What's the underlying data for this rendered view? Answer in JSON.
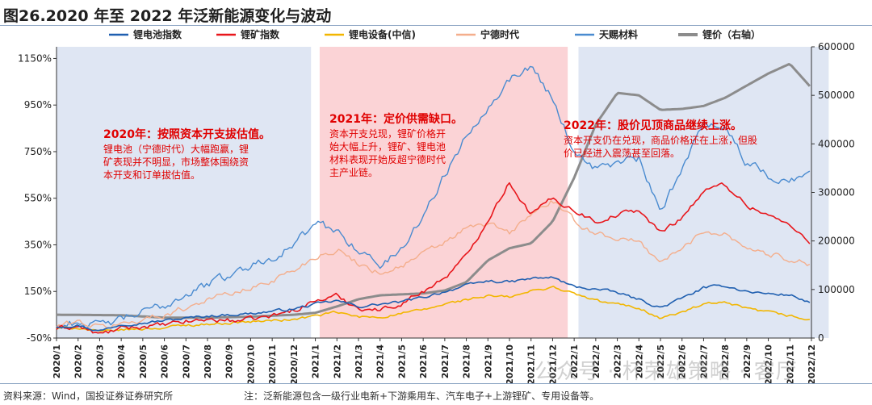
{
  "figure": {
    "title": "图26.2020 年至 2022 年泛新能源变化与波动",
    "source": "资料来源：Wind，国投证券证券研究所",
    "note": "注：泛新能源包含一级行业电新+下游乘用车、汽车电子+上游锂矿、专用设备等。",
    "watermark": "公众号 · 杯荣雄策略 · 客厅"
  },
  "colors": {
    "shade_2020": "#dfe6f3",
    "shade_2021": "#fbd3d6",
    "shade_2022": "#dfe6f3",
    "annotation": "#e00000"
  },
  "chart_data": {
    "type": "line",
    "x_ticks": [
      "2020/1",
      "2020/2",
      "2020/3",
      "2020/4",
      "2020/5",
      "2020/6",
      "2020/7",
      "2020/8",
      "2020/9",
      "2020/10",
      "2020/11",
      "2020/12",
      "2021/1",
      "2021/2",
      "2021/3",
      "2021/4",
      "2021/5",
      "2021/6",
      "2021/7",
      "2021/8",
      "2021/9",
      "2021/10",
      "2021/11",
      "2021/12",
      "2022/1",
      "2022/2",
      "2022/3",
      "2022/4",
      "2022/5",
      "2022/6",
      "2022/7",
      "2022/8",
      "2022/9",
      "2022/10",
      "2022/11",
      "2022/12"
    ],
    "y_left": {
      "ylim": [
        -50,
        1200
      ],
      "ticks": [
        "-50%",
        "150%",
        "350%",
        "550%",
        "750%",
        "950%",
        "1150%"
      ],
      "tick_values": [
        -50,
        150,
        350,
        550,
        750,
        950,
        1150
      ]
    },
    "y_right": {
      "ylim": [
        0,
        600000
      ],
      "ticks": [
        "0",
        "100000",
        "200000",
        "300000",
        "400000",
        "500000",
        "600000"
      ],
      "tick_values": [
        0,
        100000,
        200000,
        300000,
        400000,
        500000,
        600000
      ]
    },
    "legend_position": "top",
    "series": [
      {
        "name": "锂电池指数",
        "color": "#1f5fb0",
        "width": 1.6,
        "axis": "left",
        "noise": 5,
        "anchors": [
          [
            0,
            0
          ],
          [
            1,
            5
          ],
          [
            2,
            -20
          ],
          [
            3,
            10
          ],
          [
            4,
            15
          ],
          [
            5,
            25
          ],
          [
            6,
            35
          ],
          [
            7,
            45
          ],
          [
            8,
            50
          ],
          [
            9,
            55
          ],
          [
            10,
            65
          ],
          [
            11,
            75
          ],
          [
            12,
            95
          ],
          [
            13,
            110
          ],
          [
            14,
            85
          ],
          [
            15,
            95
          ],
          [
            16,
            105
          ],
          [
            17,
            125
          ],
          [
            18,
            150
          ],
          [
            19,
            175
          ],
          [
            20,
            195
          ],
          [
            21,
            190
          ],
          [
            22,
            205
          ],
          [
            23,
            210
          ],
          [
            24,
            170
          ],
          [
            25,
            160
          ],
          [
            26,
            145
          ],
          [
            27,
            115
          ],
          [
            28,
            80
          ],
          [
            29,
            120
          ],
          [
            30,
            165
          ],
          [
            31,
            175
          ],
          [
            32,
            150
          ],
          [
            33,
            140
          ],
          [
            34,
            135
          ],
          [
            35,
            100
          ]
        ]
      },
      {
        "name": "锂矿指数",
        "color": "#e8161b",
        "width": 1.6,
        "axis": "left",
        "noise": 9,
        "anchors": [
          [
            0,
            -10
          ],
          [
            1,
            0
          ],
          [
            2,
            -35
          ],
          [
            3,
            -10
          ],
          [
            4,
            0
          ],
          [
            5,
            5
          ],
          [
            6,
            20
          ],
          [
            7,
            30
          ],
          [
            8,
            25
          ],
          [
            9,
            30
          ],
          [
            10,
            45
          ],
          [
            11,
            70
          ],
          [
            12,
            110
          ],
          [
            13,
            130
          ],
          [
            14,
            80
          ],
          [
            15,
            70
          ],
          [
            16,
            100
          ],
          [
            17,
            150
          ],
          [
            18,
            210
          ],
          [
            19,
            300
          ],
          [
            20,
            460
          ],
          [
            21,
            620
          ],
          [
            22,
            480
          ],
          [
            23,
            550
          ],
          [
            24,
            500
          ],
          [
            25,
            450
          ],
          [
            26,
            480
          ],
          [
            27,
            500
          ],
          [
            28,
            400
          ],
          [
            29,
            470
          ],
          [
            30,
            580
          ],
          [
            31,
            610
          ],
          [
            32,
            520
          ],
          [
            33,
            480
          ],
          [
            34,
            430
          ],
          [
            35,
            360
          ]
        ]
      },
      {
        "name": "锂电设备(中信)",
        "color": "#f2b600",
        "width": 1.6,
        "axis": "left",
        "noise": 5,
        "anchors": [
          [
            0,
            -10
          ],
          [
            1,
            -5
          ],
          [
            2,
            -25
          ],
          [
            3,
            -15
          ],
          [
            4,
            -10
          ],
          [
            5,
            -5
          ],
          [
            6,
            5
          ],
          [
            7,
            10
          ],
          [
            8,
            15
          ],
          [
            9,
            20
          ],
          [
            10,
            25
          ],
          [
            11,
            30
          ],
          [
            12,
            45
          ],
          [
            13,
            60
          ],
          [
            14,
            40
          ],
          [
            15,
            40
          ],
          [
            16,
            55
          ],
          [
            17,
            70
          ],
          [
            18,
            95
          ],
          [
            19,
            115
          ],
          [
            20,
            130
          ],
          [
            21,
            125
          ],
          [
            22,
            150
          ],
          [
            23,
            170
          ],
          [
            24,
            140
          ],
          [
            25,
            110
          ],
          [
            26,
            95
          ],
          [
            27,
            80
          ],
          [
            28,
            35
          ],
          [
            29,
            60
          ],
          [
            30,
            95
          ],
          [
            31,
            100
          ],
          [
            32,
            75
          ],
          [
            33,
            60
          ],
          [
            34,
            45
          ],
          [
            35,
            25
          ]
        ]
      },
      {
        "name": "宁德时代",
        "color": "#f4ae8c",
        "width": 1.4,
        "axis": "left",
        "noise": 11,
        "anchors": [
          [
            0,
            0
          ],
          [
            1,
            20
          ],
          [
            2,
            -5
          ],
          [
            3,
            10
          ],
          [
            4,
            30
          ],
          [
            5,
            50
          ],
          [
            6,
            80
          ],
          [
            7,
            120
          ],
          [
            8,
            140
          ],
          [
            9,
            160
          ],
          [
            10,
            200
          ],
          [
            11,
            240
          ],
          [
            12,
            300
          ],
          [
            13,
            330
          ],
          [
            14,
            270
          ],
          [
            15,
            230
          ],
          [
            16,
            260
          ],
          [
            17,
            310
          ],
          [
            18,
            360
          ],
          [
            19,
            420
          ],
          [
            20,
            440
          ],
          [
            21,
            400
          ],
          [
            22,
            480
          ],
          [
            23,
            540
          ],
          [
            24,
            450
          ],
          [
            25,
            400
          ],
          [
            26,
            380
          ],
          [
            27,
            360
          ],
          [
            28,
            280
          ],
          [
            29,
            330
          ],
          [
            30,
            410
          ],
          [
            31,
            400
          ],
          [
            32,
            340
          ],
          [
            33,
            310
          ],
          [
            34,
            290
          ],
          [
            35,
            270
          ]
        ]
      },
      {
        "name": "天赐材料",
        "color": "#4a8bd0",
        "width": 1.4,
        "axis": "left",
        "noise": 16,
        "anchors": [
          [
            0,
            0
          ],
          [
            1,
            20
          ],
          [
            2,
            0
          ],
          [
            3,
            30
          ],
          [
            4,
            60
          ],
          [
            5,
            90
          ],
          [
            6,
            140
          ],
          [
            7,
            180
          ],
          [
            8,
            220
          ],
          [
            9,
            260
          ],
          [
            10,
            300
          ],
          [
            11,
            350
          ],
          [
            12,
            440
          ],
          [
            13,
            410
          ],
          [
            14,
            330
          ],
          [
            15,
            260
          ],
          [
            16,
            330
          ],
          [
            17,
            480
          ],
          [
            18,
            650
          ],
          [
            19,
            820
          ],
          [
            20,
            950
          ],
          [
            21,
            1060
          ],
          [
            22,
            1120
          ],
          [
            23,
            980
          ],
          [
            24,
            750
          ],
          [
            25,
            680
          ],
          [
            26,
            700
          ],
          [
            27,
            720
          ],
          [
            28,
            480
          ],
          [
            29,
            680
          ],
          [
            30,
            880
          ],
          [
            31,
            860
          ],
          [
            32,
            700
          ],
          [
            33,
            650
          ],
          [
            34,
            620
          ],
          [
            35,
            680
          ]
        ]
      },
      {
        "name": "锂价（右轴）",
        "color": "#8c8c8c",
        "width": 3,
        "axis": "right",
        "noise": 0,
        "anchors": [
          [
            0,
            48000
          ],
          [
            3,
            47000
          ],
          [
            5,
            42000
          ],
          [
            7,
            42000
          ],
          [
            9,
            44000
          ],
          [
            11,
            48000
          ],
          [
            12,
            52000
          ],
          [
            13,
            65000
          ],
          [
            14,
            80000
          ],
          [
            15,
            88000
          ],
          [
            16,
            90000
          ],
          [
            17,
            92000
          ],
          [
            18,
            98000
          ],
          [
            19,
            115000
          ],
          [
            20,
            160000
          ],
          [
            21,
            185000
          ],
          [
            22,
            195000
          ],
          [
            23,
            240000
          ],
          [
            24,
            330000
          ],
          [
            25,
            440000
          ],
          [
            26,
            505000
          ],
          [
            27,
            500000
          ],
          [
            28,
            470000
          ],
          [
            29,
            472000
          ],
          [
            30,
            478000
          ],
          [
            31,
            495000
          ],
          [
            32,
            520000
          ],
          [
            33,
            545000
          ],
          [
            34,
            565000
          ],
          [
            35,
            515000
          ]
        ]
      }
    ]
  },
  "periods": [
    {
      "name": "2020",
      "start": 0,
      "end": 11.8
    },
    {
      "name": "2021",
      "start": 12.2,
      "end": 23.7
    },
    {
      "name": "2022",
      "start": 24.2,
      "end": 35.8
    }
  ],
  "annotations": [
    {
      "heading": "2020年：按照资本开支拔估值。",
      "lines": [
        "锂电池（宁德时代）大幅跑赢，锂",
        "矿表现并不明显，市场整体围绕资",
        "本开支和订单拔估值。"
      ]
    },
    {
      "heading": "2021年：定价供需缺口。",
      "lines": [
        "资本开支兑现，锂矿价格开",
        "始大幅上升，锂矿、锂电池",
        "材料表现开始反超宁德时代",
        "主产业链。"
      ]
    },
    {
      "heading": "2022年：股价见顶商品继续上涨。",
      "lines": [
        "资本开支仍在兑现，商品价格还在上涨，但股",
        "价已经进入震荡甚至回落。"
      ]
    }
  ]
}
